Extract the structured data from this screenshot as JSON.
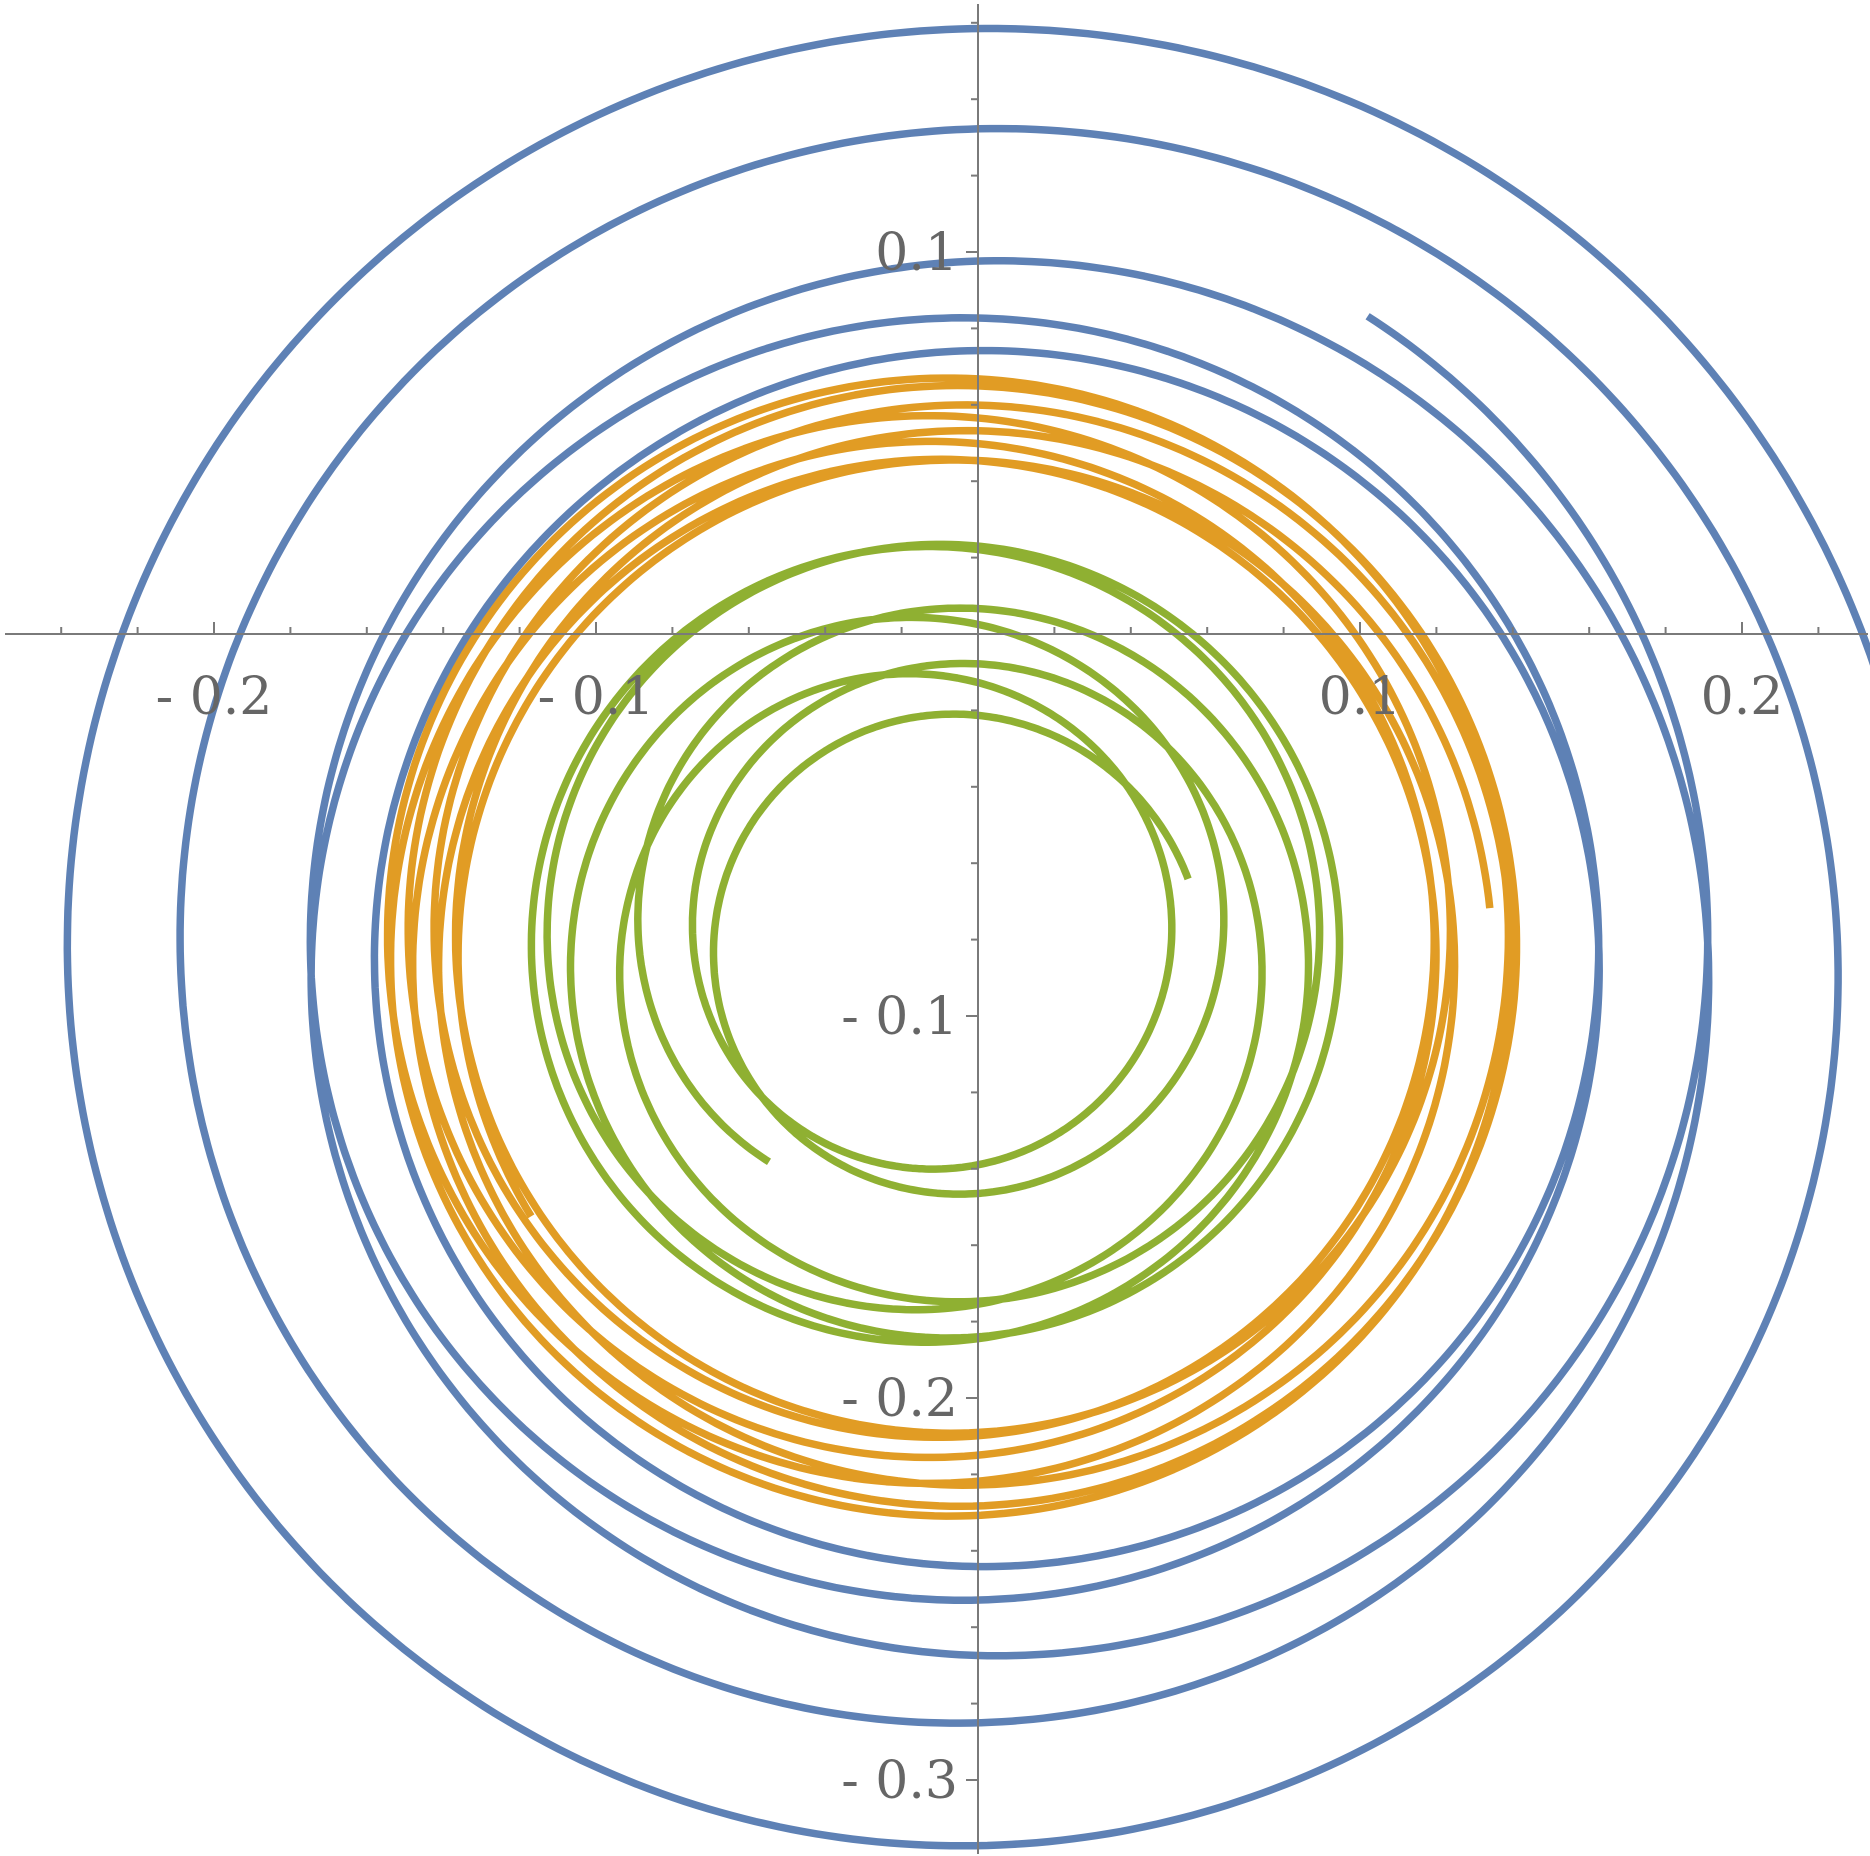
{
  "chart_data": {
    "type": "line",
    "title": "",
    "xlabel": "",
    "ylabel": "",
    "xlim": [
      -0.255,
      0.232
    ],
    "ylim": [
      -0.318,
      0.163
    ],
    "axes_origin": [
      0,
      0
    ],
    "grid": false,
    "legend": "none",
    "x_ticks": [
      {
        "value": -0.2,
        "label": "- 0.2"
      },
      {
        "value": -0.1,
        "label": "- 0.1"
      },
      {
        "value": 0.1,
        "label": "0.1"
      },
      {
        "value": 0.2,
        "label": "0.2"
      }
    ],
    "y_ticks": [
      {
        "value": 0.1,
        "label": "0.1"
      },
      {
        "value": -0.1,
        "label": "- 0.1"
      },
      {
        "value": -0.2,
        "label": "- 0.2"
      },
      {
        "value": -0.3,
        "label": "- 0.3"
      }
    ],
    "series": [
      {
        "color": "#5E81B5",
        "center": [
          0,
          -0.085
        ],
        "radius": 0.205,
        "wobble": 0.047,
        "inner_freq": 1.12,
        "phase": 0.5,
        "turns": 5.2,
        "samples": 2400
      },
      {
        "color": "#E19C24",
        "center": [
          -0.008,
          -0.082
        ],
        "radius": 0.138,
        "wobble": 0.011,
        "inner_freq": 1.45,
        "phase": 1.2,
        "turns": 7.6,
        "samples": 2400
      },
      {
        "color": "#8FB032",
        "center": [
          -0.011,
          -0.082
        ],
        "radius": 0.082,
        "wobble": 0.024,
        "inner_freq": 1.3,
        "phase": 2.3,
        "turns": 6.6,
        "samples": 2400
      }
    ]
  }
}
